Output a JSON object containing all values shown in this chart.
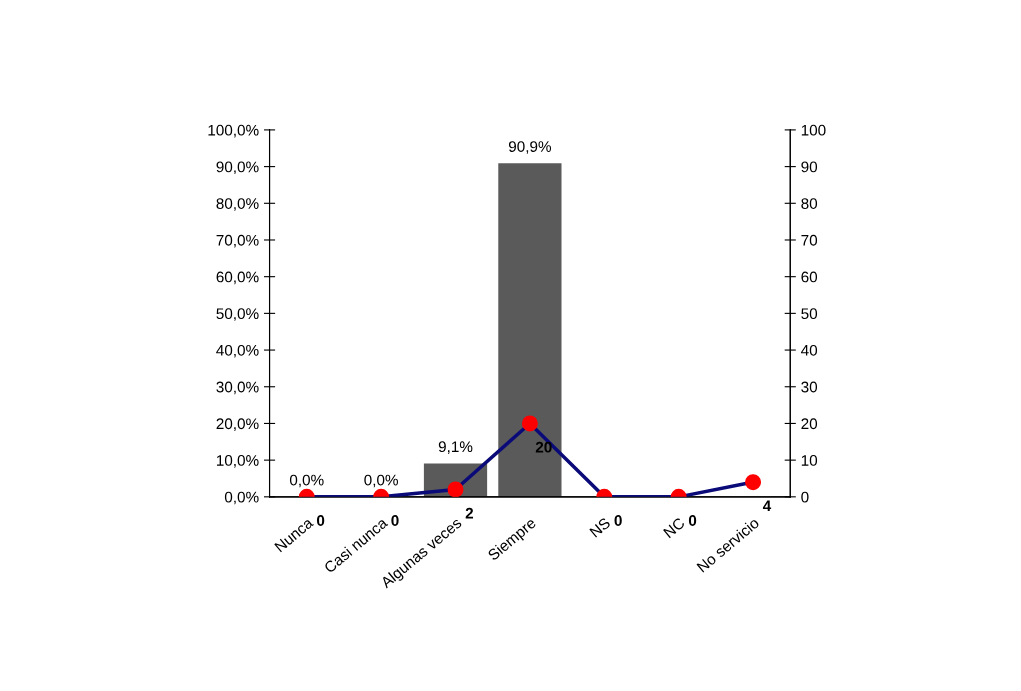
{
  "chart_data": {
    "type": "bar",
    "categories": [
      "Nunca",
      "Casi nunca",
      "Algunas veces",
      "Siempre",
      "NS",
      "NC",
      "No servicio"
    ],
    "series": [
      {
        "color": "#5a5a5a",
        "values": [
          0,
          0,
          9.1,
          90.9,
          null,
          null,
          null
        ],
        "value_labels": [
          "0,0%",
          "0,0%",
          "9,1%",
          "90,9%",
          null,
          null,
          null
        ]
      },
      {
        "type": "line",
        "axis": "y2",
        "color": "#0a0a78",
        "colors": [
          "#ff0000",
          "#ff0000",
          "#ff0000",
          "#ff0000",
          "#ff0000",
          "#ff0000",
          "#ff0000"
        ],
        "values": [
          0,
          0,
          2,
          20,
          0,
          0,
          4
        ],
        "value_labels": [
          "0",
          "0",
          "2",
          "20",
          "0",
          "0",
          "4"
        ]
      }
    ],
    "ylim": [
      0,
      100
    ],
    "yticks": [
      {
        "value": 0,
        "label": "0,0%"
      },
      {
        "value": 10,
        "label": "10,0%"
      },
      {
        "value": 20,
        "label": "20,0%"
      },
      {
        "value": 30,
        "label": "30,0%"
      },
      {
        "value": 40,
        "label": "40,0%"
      },
      {
        "value": 50,
        "label": "50,0%"
      },
      {
        "value": 60,
        "label": "60,0%"
      },
      {
        "value": 70,
        "label": "70,0%"
      },
      {
        "value": 80,
        "label": "80,0%"
      },
      {
        "value": 90,
        "label": "90,0%"
      },
      {
        "value": 100,
        "label": "100,0%"
      }
    ],
    "y2lim": [
      0,
      100
    ],
    "y2ticks": [
      0,
      10,
      20,
      30,
      40,
      50,
      60,
      70,
      80,
      90,
      100
    ],
    "marker": "circle",
    "line_style": "solid",
    "grid": false,
    "legend": false
  }
}
